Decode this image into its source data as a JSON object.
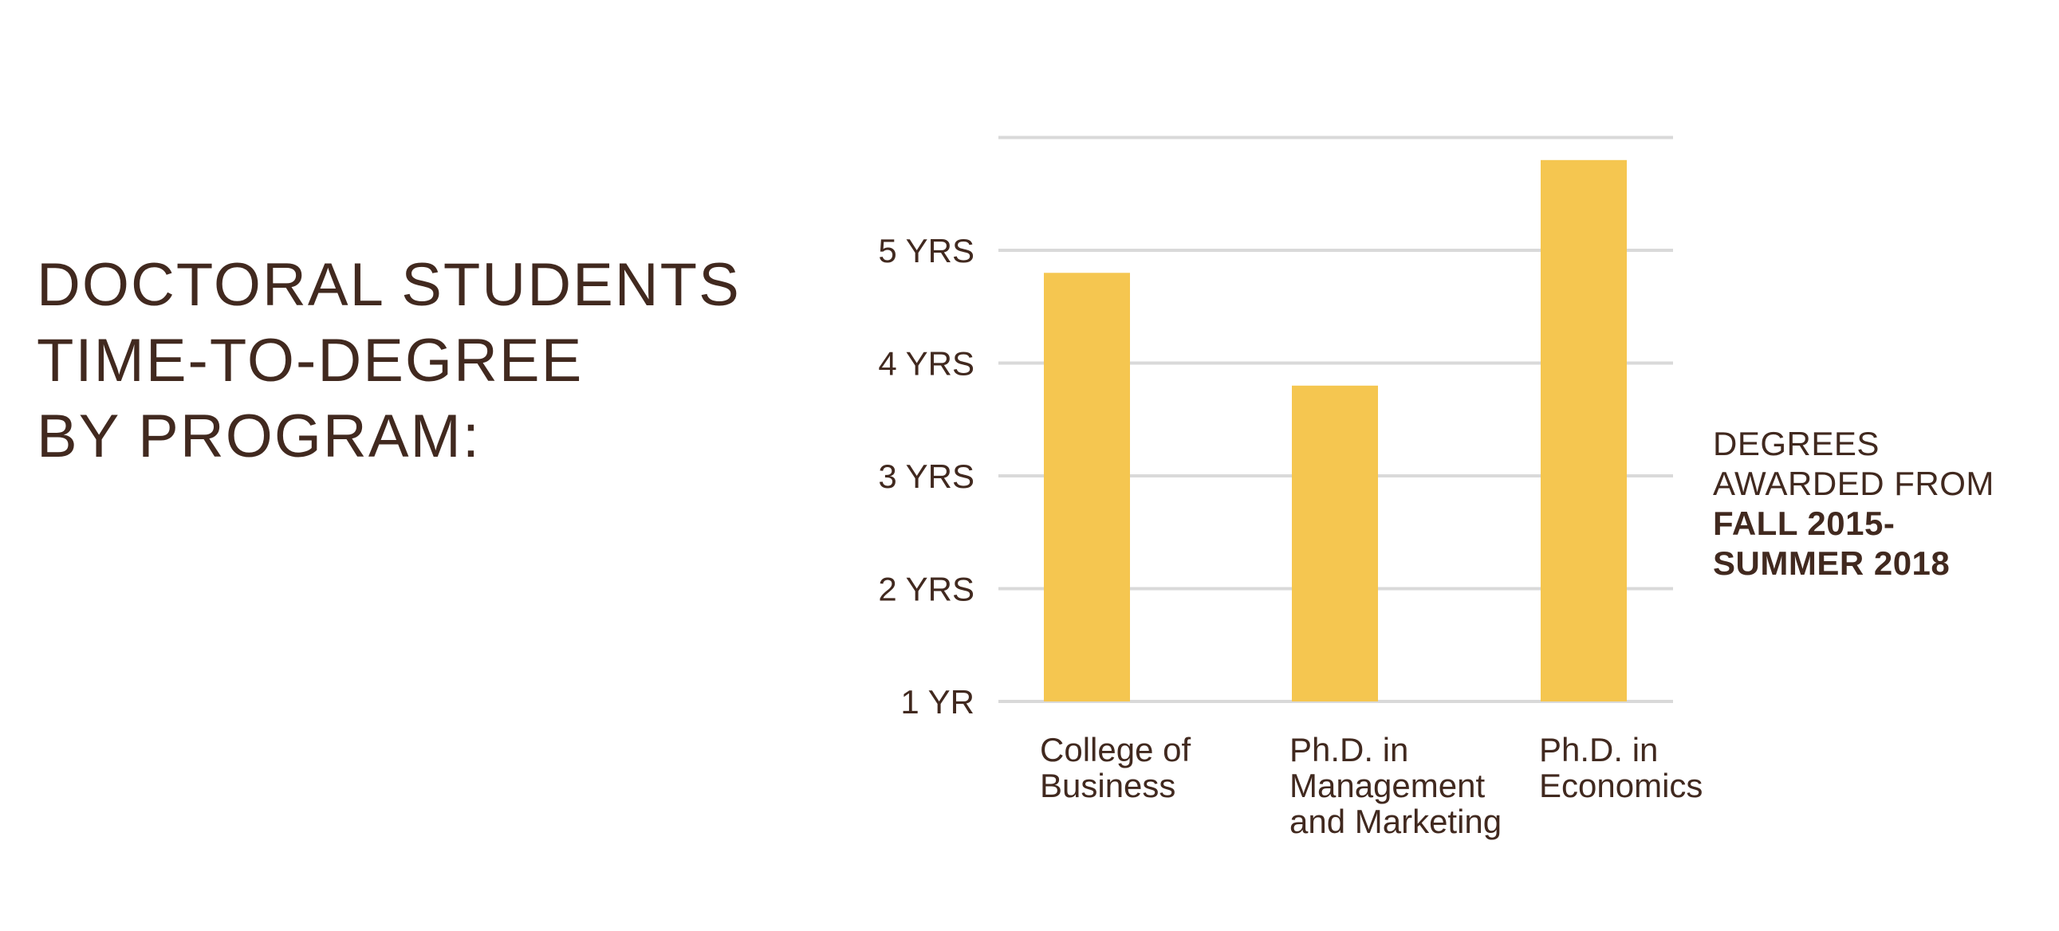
{
  "heading": {
    "line1": "DOCTORAL STUDENTS",
    "line2": "TIME-TO-DEGREE",
    "line3": "BY PROGRAM:"
  },
  "note": {
    "line1": "DEGREES",
    "line2": "AWARDED FROM",
    "line3": "FALL 2015-",
    "line4": "SUMMER 2018"
  },
  "colors": {
    "bar": "#f5c650",
    "grid": "#d9d9d9",
    "text": "#41291f"
  },
  "chart_data": {
    "type": "bar",
    "categories": [
      [
        "College of",
        "Business"
      ],
      [
        "Ph.D. in",
        "Management",
        "and Marketing"
      ],
      [
        "Ph.D. in",
        "Economics"
      ]
    ],
    "values": [
      4.8,
      3.8,
      5.8
    ],
    "ylim": [
      1,
      5.8
    ],
    "yticks": [
      {
        "value": 1,
        "label": "1 YR"
      },
      {
        "value": 2,
        "label": "2 YRS"
      },
      {
        "value": 3,
        "label": "3 YRS"
      },
      {
        "value": 4,
        "label": "4 YRS"
      },
      {
        "value": 5,
        "label": "5 YRS"
      }
    ],
    "gridlines": [
      1,
      2,
      3,
      4,
      5,
      6
    ],
    "grid": true
  }
}
